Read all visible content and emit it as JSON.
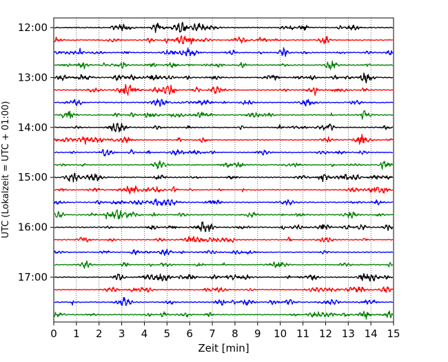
{
  "chart_data": {
    "type": "line",
    "title": "",
    "xlabel": "Zeit  [min]",
    "ylabel": "UTC (Lokalzeit = UTC + 01:00)",
    "xlim": [
      0,
      15
    ],
    "x_ticks": [
      "0",
      "1",
      "2",
      "3",
      "4",
      "5",
      "6",
      "7",
      "8",
      "9",
      "10",
      "11",
      "12",
      "13",
      "14",
      "15"
    ],
    "y_ticks": [
      "12:00",
      "13:00",
      "14:00",
      "15:00",
      "16:00",
      "17:00"
    ],
    "grid": "vertical dotted lines at each minute",
    "trace_interval_min": 15,
    "first_trace": "12:00",
    "trace_count": 24,
    "trace_colors": [
      "#000000",
      "#ff0000",
      "#0000ff",
      "#008000"
    ]
  }
}
